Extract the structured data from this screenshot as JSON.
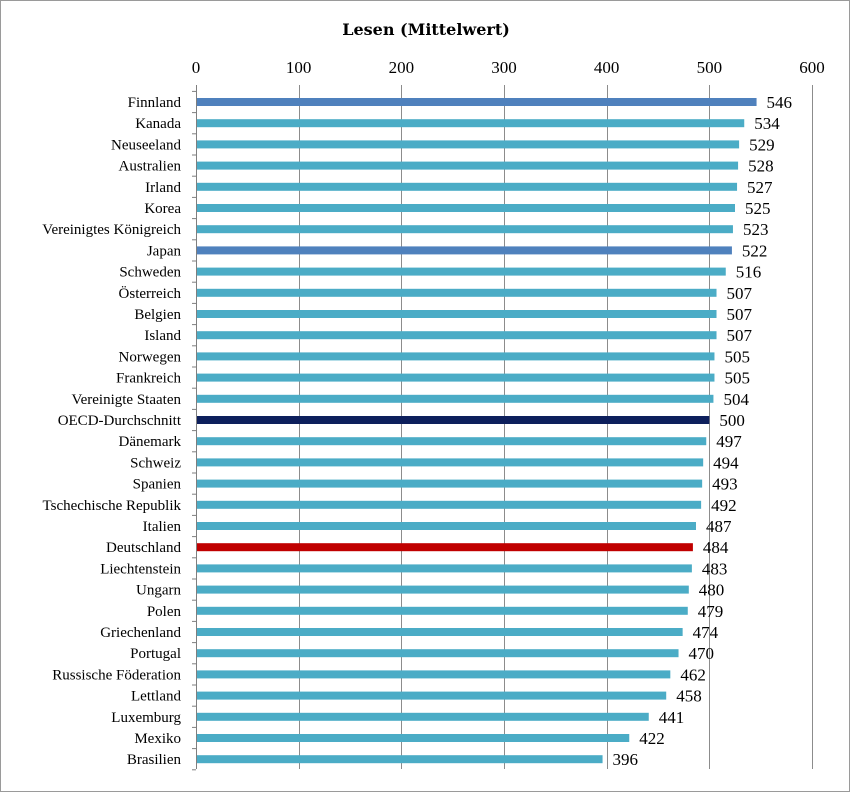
{
  "chart_data": {
    "type": "bar",
    "orientation": "horizontal",
    "title": "Lesen (Mittelwert)",
    "xlim": [
      0,
      600
    ],
    "ticks": [
      0,
      100,
      200,
      300,
      400,
      500,
      600
    ],
    "x_axis_position": "top",
    "grid": true,
    "legend": "none",
    "categories": [
      "Finnland",
      "Kanada",
      "Neuseeland",
      "Australien",
      "Irland",
      "Korea",
      "Vereinigtes Königreich",
      "Japan",
      "Schweden",
      "Österreich",
      "Belgien",
      "Island",
      "Norwegen",
      "Frankreich",
      "Vereinigte Staaten",
      "OECD-Durchschnitt",
      "Dänemark",
      "Schweiz",
      "Spanien",
      "Tschechische Republik",
      "Italien",
      "Deutschland",
      "Liechtenstein",
      "Ungarn",
      "Polen",
      "Griechenland",
      "Portugal",
      "Russische Föderation",
      "Lettland",
      "Luxemburg",
      "Mexiko",
      "Brasilien"
    ],
    "values": [
      546,
      534,
      529,
      528,
      527,
      525,
      523,
      522,
      516,
      507,
      507,
      507,
      505,
      505,
      504,
      500,
      497,
      494,
      493,
      492,
      487,
      484,
      483,
      480,
      479,
      474,
      470,
      462,
      458,
      441,
      422,
      396
    ],
    "colors": {
      "default": "#4bacc6",
      "Finnland": "#4f81bd",
      "Japan": "#4f81bd",
      "OECD-Durchschnitt": "#0d1f5c",
      "Deutschland": "#c00000"
    }
  }
}
